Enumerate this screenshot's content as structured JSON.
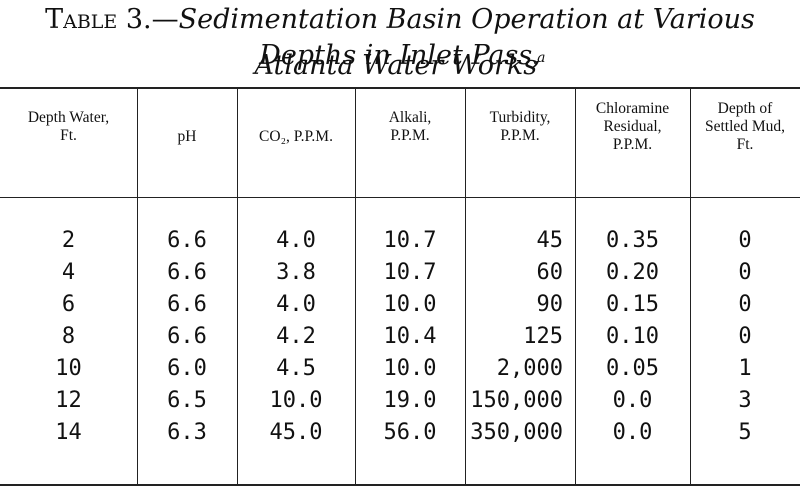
{
  "title": {
    "lead": "Table 3.—",
    "line1": "Sedimentation Basin Operation at Various Depths in Inlet Pass,",
    "line2": "Atlanta Water Works",
    "footnote_mark": "a"
  },
  "headers": [
    [
      "Depth Water,",
      "Ft."
    ],
    [
      "pH"
    ],
    [
      "CO₂, P.P.M."
    ],
    [
      "Alkali,",
      "P.P.M."
    ],
    [
      "Turbidity,",
      "P.P.M."
    ],
    [
      "Chloramine",
      "Residual,",
      "P.P.M."
    ],
    [
      "Depth of",
      "Settled Mud,",
      "Ft."
    ]
  ],
  "rows": [
    [
      "2",
      "6.6",
      "4.0",
      "10.7",
      "45",
      "0.35",
      "0"
    ],
    [
      "4",
      "6.6",
      "3.8",
      "10.7",
      "60",
      "0.20",
      "0"
    ],
    [
      "6",
      "6.6",
      "4.0",
      "10.0",
      "90",
      "0.15",
      "0"
    ],
    [
      "8",
      "6.6",
      "4.2",
      "10.4",
      "125",
      "0.10",
      "0"
    ],
    [
      "10",
      "6.0",
      "4.5",
      "10.0",
      "2,000",
      "0.05",
      "1"
    ],
    [
      "12",
      "6.5",
      "10.0",
      "19.0",
      "150,000",
      "0.0",
      "3"
    ],
    [
      "14",
      "6.3",
      "45.0",
      "56.0",
      "350,000",
      "0.0",
      "5"
    ]
  ]
}
